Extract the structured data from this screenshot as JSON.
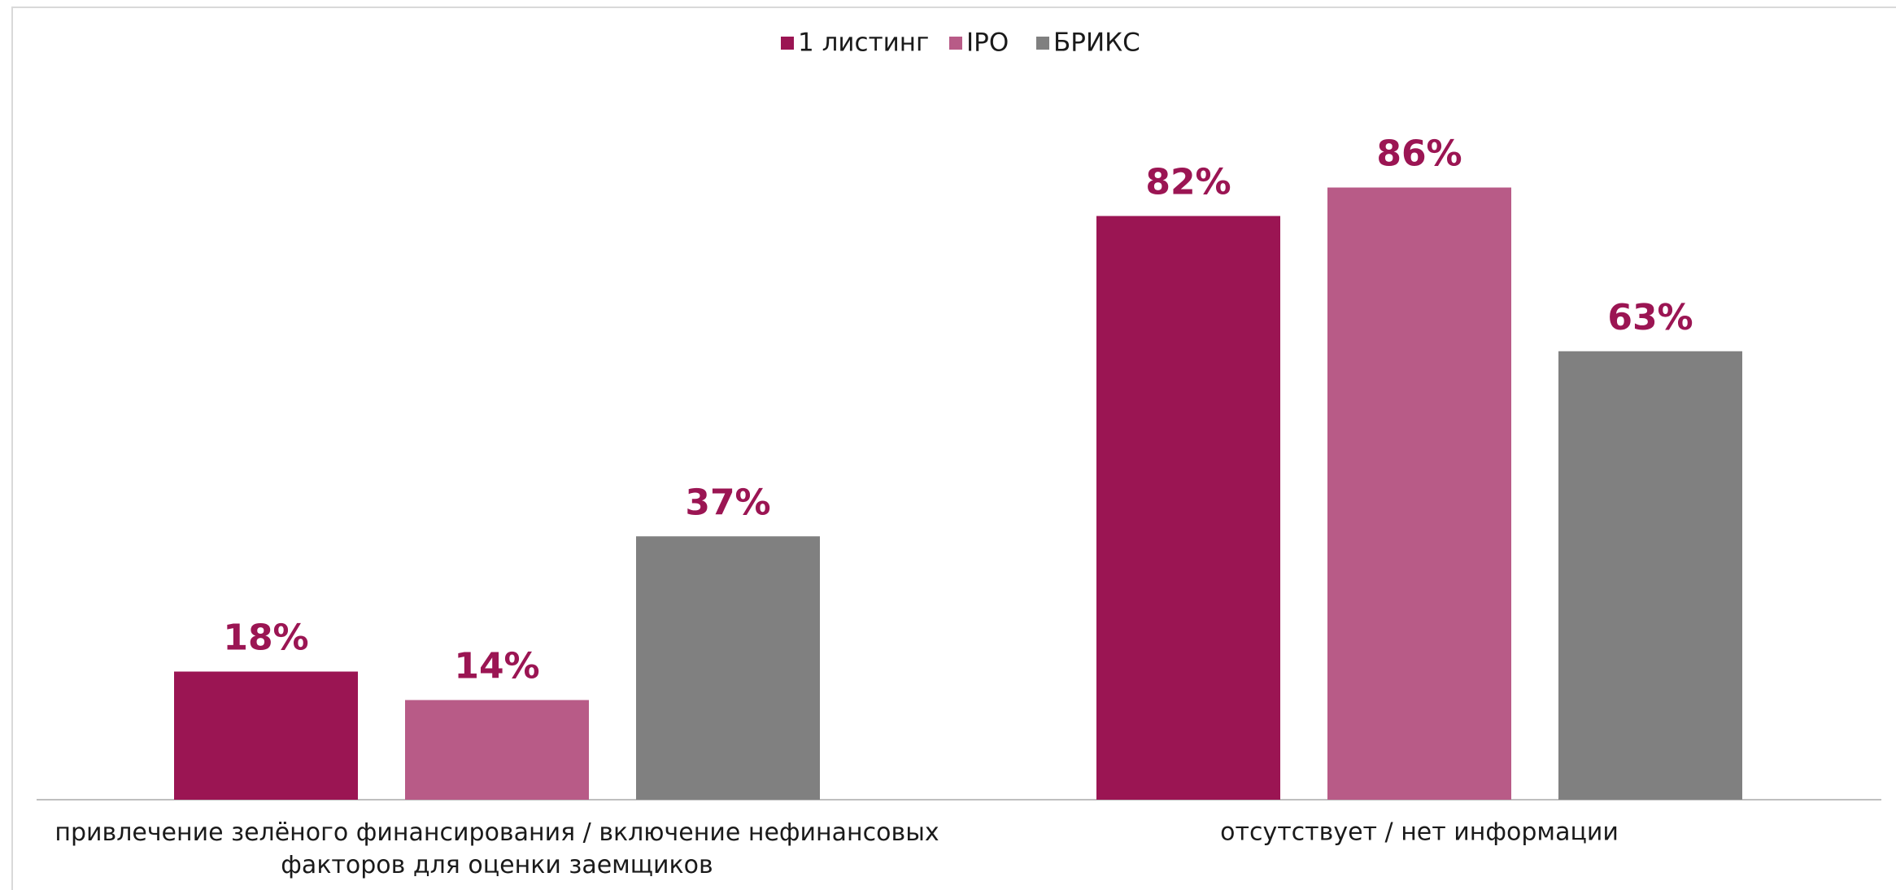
{
  "chart_data": {
    "type": "bar",
    "categories": [
      "привлечение зелёного финансирования / включение нефинансовых факторов для оценки заемщиков",
      "отсутствует / нет информации"
    ],
    "series": [
      {
        "name": "1 листинг",
        "color": "#9b1553",
        "values": [
          18,
          82
        ],
        "value_labels": [
          "18%",
          "82%"
        ]
      },
      {
        "name": "IPO",
        "color": "#b85b87",
        "values": [
          14,
          86
        ],
        "value_labels": [
          "14%",
          "86%"
        ]
      },
      {
        "name": "БРИКС",
        "color": "#808080",
        "values": [
          37,
          63
        ],
        "value_labels": [
          "37%",
          "63%"
        ]
      }
    ],
    "legend": "top"
  }
}
